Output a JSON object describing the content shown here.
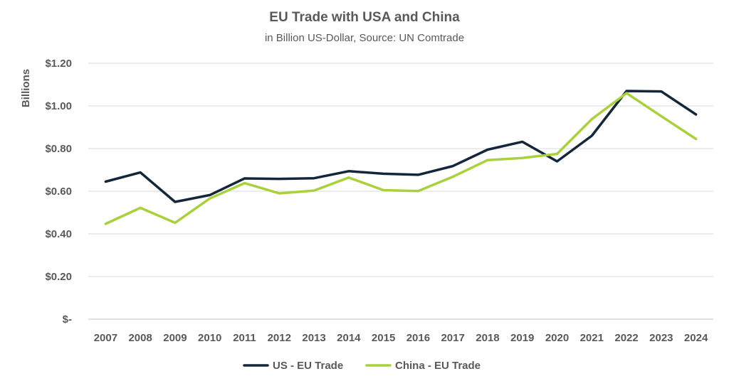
{
  "chart_data": {
    "type": "line",
    "title": "EU Trade with USA and China",
    "subtitle": "in Billion US-Dollar, Source: UN Comtrade",
    "ylabel": "Billions",
    "xlabel": "",
    "ylim": [
      0,
      1.2
    ],
    "y_ticks": [
      0,
      0.2,
      0.4,
      0.6,
      0.8,
      1.0,
      1.2
    ],
    "y_tick_labels": [
      "$-",
      "$0.20",
      "$0.40",
      "$0.60",
      "$0.80",
      "$1.00",
      "$1.20"
    ],
    "categories": [
      "2007",
      "2008",
      "2009",
      "2010",
      "2011",
      "2012",
      "2013",
      "2014",
      "2015",
      "2016",
      "2017",
      "2018",
      "2019",
      "2020",
      "2021",
      "2022",
      "2023",
      "2024"
    ],
    "grid": true,
    "legend_position": "bottom",
    "series": [
      {
        "name": "US - EU Trade",
        "color": "#14263a",
        "values": [
          0.645,
          0.688,
          0.55,
          0.582,
          0.66,
          0.658,
          0.661,
          0.694,
          0.682,
          0.677,
          0.718,
          0.795,
          0.832,
          0.74,
          0.86,
          1.07,
          1.068,
          0.96
        ]
      },
      {
        "name": "China - EU Trade",
        "color": "#a8d13a",
        "values": [
          0.447,
          0.522,
          0.452,
          0.566,
          0.638,
          0.59,
          0.603,
          0.664,
          0.605,
          0.601,
          0.668,
          0.746,
          0.756,
          0.775,
          0.938,
          1.06,
          0.952,
          0.845
        ]
      }
    ]
  }
}
